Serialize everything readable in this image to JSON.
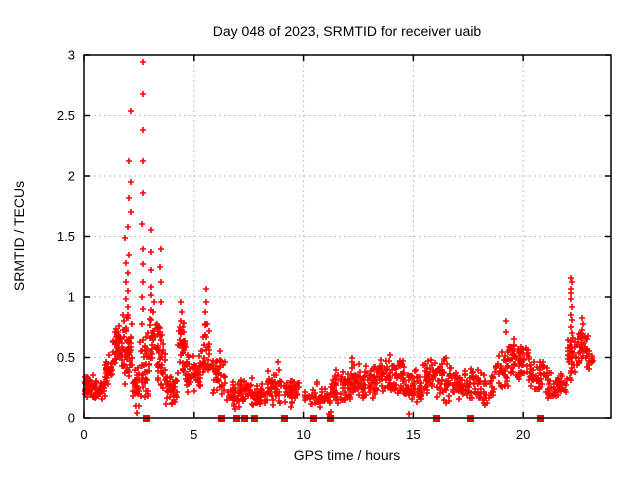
{
  "chart_data": {
    "type": "scatter",
    "title": "Day 048 of 2023, SRMTID for receiver uaib",
    "xlabel": "GPS time / hours",
    "ylabel": "SRMTID / TECUs",
    "xlim": [
      0,
      24
    ],
    "ylim": [
      0,
      3
    ],
    "xticks": [
      0,
      5,
      10,
      15,
      20
    ],
    "yticks": [
      0,
      0.5,
      1,
      1.5,
      2,
      2.5,
      3
    ],
    "grid": true,
    "legend": "none",
    "marker": "plus",
    "zero_marker_shape": "filled-square",
    "marker_color": "#ff0000",
    "background_color": "#ffffff",
    "axis_color": "#000000",
    "grid_color": "#c0c0c0",
    "series": [
      {
        "name": "SRMTID",
        "density_bands": [
          [
            0.0,
            0.45,
            40,
            0.15,
            0.38
          ],
          [
            0.45,
            0.95,
            40,
            0.12,
            0.32
          ],
          [
            0.95,
            1.3,
            35,
            0.25,
            0.55
          ],
          [
            1.3,
            1.75,
            45,
            0.35,
            0.8
          ],
          [
            1.75,
            2.2,
            55,
            0.25,
            0.9
          ],
          [
            2.2,
            2.55,
            30,
            0.07,
            0.45
          ],
          [
            2.55,
            3.0,
            40,
            0.1,
            0.9
          ],
          [
            3.0,
            3.35,
            30,
            0.4,
            1.05
          ],
          [
            3.35,
            3.7,
            35,
            0.15,
            0.8
          ],
          [
            3.7,
            4.25,
            40,
            0.07,
            0.45
          ],
          [
            4.25,
            4.65,
            35,
            0.3,
            0.85
          ],
          [
            4.65,
            5.4,
            55,
            0.2,
            0.6
          ],
          [
            5.4,
            5.75,
            25,
            0.3,
            0.85
          ],
          [
            5.75,
            6.45,
            40,
            0.15,
            0.55
          ],
          [
            6.45,
            7.1,
            35,
            0.06,
            0.3
          ],
          [
            7.1,
            7.65,
            35,
            0.1,
            0.38
          ],
          [
            7.65,
            8.3,
            38,
            0.06,
            0.3
          ],
          [
            8.3,
            9.0,
            40,
            0.1,
            0.4
          ],
          [
            9.0,
            9.85,
            45,
            0.08,
            0.35
          ],
          [
            9.85,
            10.35,
            8,
            0.1,
            0.25
          ],
          [
            10.35,
            11.3,
            40,
            0.07,
            0.32
          ],
          [
            11.3,
            12.3,
            65,
            0.1,
            0.42
          ],
          [
            12.3,
            13.3,
            75,
            0.15,
            0.45
          ],
          [
            13.3,
            14.6,
            90,
            0.18,
            0.5
          ],
          [
            14.6,
            15.4,
            55,
            0.12,
            0.42
          ],
          [
            15.4,
            16.4,
            60,
            0.15,
            0.5
          ],
          [
            16.4,
            17.3,
            50,
            0.1,
            0.45
          ],
          [
            17.3,
            18.7,
            75,
            0.1,
            0.45
          ],
          [
            18.7,
            19.3,
            30,
            0.2,
            0.55
          ],
          [
            19.3,
            20.3,
            65,
            0.3,
            0.65
          ],
          [
            20.3,
            21.1,
            45,
            0.18,
            0.5
          ],
          [
            21.1,
            22.0,
            50,
            0.12,
            0.4
          ],
          [
            22.0,
            22.45,
            28,
            0.25,
            0.7
          ],
          [
            22.45,
            22.95,
            40,
            0.4,
            0.8
          ],
          [
            22.95,
            23.2,
            12,
            0.35,
            0.6
          ]
        ],
        "spike_columns": [
          {
            "x": 1.9,
            "ys": [
              1.49,
              1.28,
              1.12,
              0.98
            ]
          },
          {
            "x": 2.02,
            "ys": [
              2.12,
              1.82,
              1.58,
              1.35,
              1.2,
              1.05,
              0.92
            ]
          },
          {
            "x": 2.14,
            "ys": [
              2.54,
              1.95,
              1.7
            ]
          },
          {
            "x": 2.68,
            "ys": [
              2.94,
              2.68,
              2.38,
              2.12,
              1.86,
              1.6,
              1.4,
              1.27,
              1.12,
              1.0,
              0.9
            ]
          },
          {
            "x": 3.05,
            "ys": [
              1.55,
              1.37,
              1.22,
              1.08
            ]
          },
          {
            "x": 3.5,
            "ys": [
              1.4,
              1.25,
              1.12,
              0.96
            ]
          },
          {
            "x": 4.45,
            "ys": [
              0.96,
              0.88,
              0.8
            ]
          },
          {
            "x": 5.55,
            "ys": [
              1.07,
              0.96,
              0.88,
              0.78
            ]
          },
          {
            "x": 6.2,
            "ys": [
              0.55,
              0.48
            ]
          },
          {
            "x": 8.85,
            "ys": [
              0.46,
              0.4
            ]
          },
          {
            "x": 12.2,
            "ys": [
              0.5,
              0.46
            ]
          },
          {
            "x": 13.9,
            "ys": [
              0.52,
              0.47
            ]
          },
          {
            "x": 16.5,
            "ys": [
              0.5,
              0.45
            ]
          },
          {
            "x": 19.2,
            "ys": [
              0.8,
              0.71
            ]
          },
          {
            "x": 19.6,
            "ys": [
              0.65,
              0.6
            ]
          },
          {
            "x": 22.2,
            "ys": [
              1.16,
              1.12,
              1.07,
              1.03,
              0.98,
              0.92,
              0.85,
              0.81,
              0.75,
              0.7,
              0.64,
              0.59,
              0.55,
              0.5,
              0.45
            ]
          },
          {
            "x": 22.7,
            "ys": [
              0.83,
              0.78,
              0.73,
              0.68
            ]
          }
        ],
        "zero_markers_x": [
          2.82,
          6.23,
          6.9,
          7.27,
          7.73,
          9.09,
          10.45,
          11.22,
          16.05,
          17.6,
          20.77
        ],
        "near_zero_points": [
          [
            2.4,
            0.04
          ],
          [
            11.18,
            0.03
          ],
          [
            11.26,
            0.05
          ],
          [
            14.78,
            0.03
          ]
        ]
      }
    ]
  }
}
